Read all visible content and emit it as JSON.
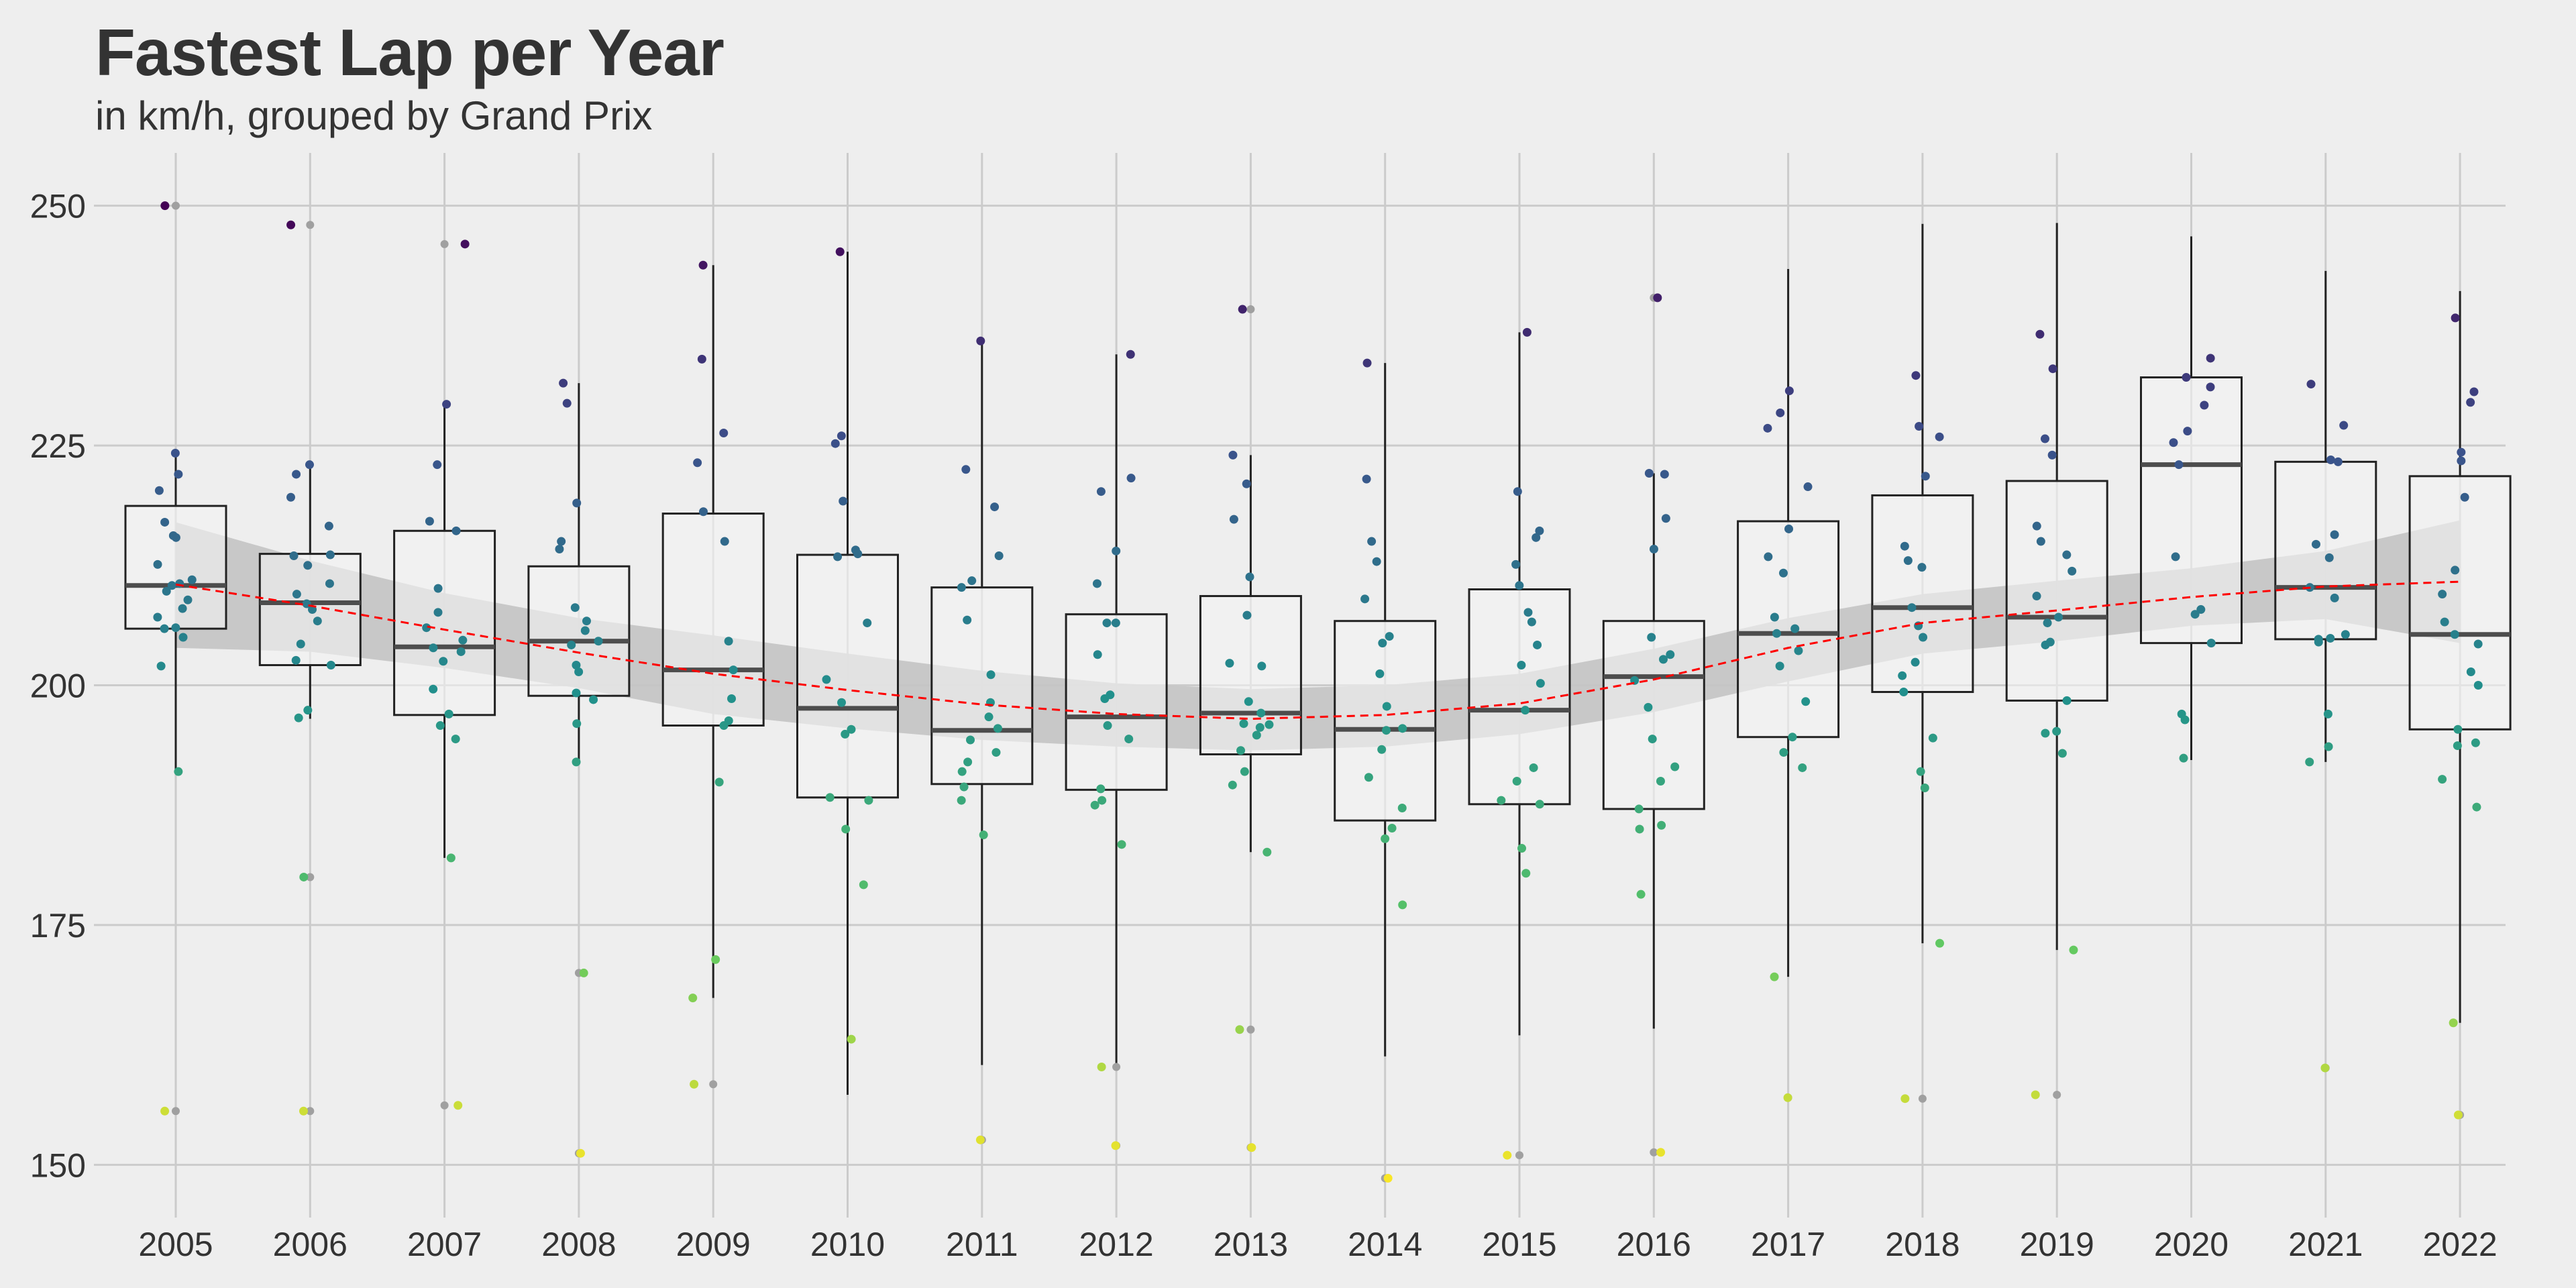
{
  "chart_data": {
    "type": "box",
    "title": "Fastest Lap per Year",
    "subtitle": "in km/h, grouped by Grand Prix",
    "xlabel": "",
    "ylabel": "",
    "ylim": [
      144.5,
      255.5
    ],
    "yticks": [
      150,
      175,
      200,
      225,
      250
    ],
    "grid": true,
    "legend": "none",
    "categories": [
      "2005",
      "2006",
      "2007",
      "2008",
      "2009",
      "2010",
      "2011",
      "2012",
      "2013",
      "2014",
      "2015",
      "2016",
      "2017",
      "2018",
      "2019",
      "2020",
      "2021",
      "2022"
    ],
    "boxes": [
      {
        "q1": 205.9,
        "median": 210.4,
        "q3": 218.7,
        "wlow": 191.0,
        "whigh": 224.2
      },
      {
        "q1": 202.1,
        "median": 208.6,
        "q3": 213.7,
        "wlow": 196.5,
        "whigh": 223.0
      },
      {
        "q1": 196.9,
        "median": 204.0,
        "q3": 216.1,
        "wlow": 182.0,
        "whigh": 229.3
      },
      {
        "q1": 198.9,
        "median": 204.6,
        "q3": 212.4,
        "wlow": 192.0,
        "whigh": 231.5
      },
      {
        "q1": 195.8,
        "median": 201.6,
        "q3": 217.9,
        "wlow": 167.4,
        "whigh": 243.8
      },
      {
        "q1": 188.3,
        "median": 197.6,
        "q3": 213.6,
        "wlow": 157.3,
        "whigh": 245.2
      },
      {
        "q1": 189.7,
        "median": 195.3,
        "q3": 210.2,
        "wlow": 160.4,
        "whigh": 235.9
      },
      {
        "q1": 189.1,
        "median": 196.7,
        "q3": 207.4,
        "wlow": 160.2,
        "whigh": 234.5
      },
      {
        "q1": 192.8,
        "median": 197.1,
        "q3": 209.3,
        "wlow": 182.6,
        "whigh": 224.0
      },
      {
        "q1": 185.9,
        "median": 195.4,
        "q3": 206.7,
        "wlow": 161.3,
        "whigh": 233.6
      },
      {
        "q1": 187.6,
        "median": 197.4,
        "q3": 210.0,
        "wlow": 163.5,
        "whigh": 236.8
      },
      {
        "q1": 187.1,
        "median": 200.9,
        "q3": 206.7,
        "wlow": 164.2,
        "whigh": 222.1
      },
      {
        "q1": 194.6,
        "median": 205.4,
        "q3": 217.1,
        "wlow": 169.6,
        "whigh": 243.4
      },
      {
        "q1": 199.3,
        "median": 208.1,
        "q3": 219.8,
        "wlow": 173.1,
        "whigh": 248.1
      },
      {
        "q1": 198.4,
        "median": 207.1,
        "q3": 221.3,
        "wlow": 172.4,
        "whigh": 248.2
      },
      {
        "q1": 204.4,
        "median": 223.0,
        "q3": 232.1,
        "wlow": 192.2,
        "whigh": 246.8
      },
      {
        "q1": 204.8,
        "median": 210.2,
        "q3": 223.3,
        "wlow": 192.0,
        "whigh": 243.2
      },
      {
        "q1": 195.4,
        "median": 205.3,
        "q3": 221.8,
        "wlow": 164.8,
        "whigh": 241.1
      }
    ],
    "outliers": [
      [
        250.0,
        155.6
      ],
      [
        248.0,
        180.0,
        155.6
      ],
      [
        246.0,
        156.2
      ],
      [
        170.0,
        151.2
      ],
      [
        158.4
      ],
      [],
      [
        152.6
      ],
      [
        160.2,
        152.0
      ],
      [
        239.2,
        164.1,
        151.8
      ],
      [
        148.6
      ],
      [
        151.0
      ],
      [
        240.4,
        151.3
      ],
      [
        157.0
      ],
      [
        156.9
      ],
      [
        157.3
      ],
      [],
      [
        160.1
      ],
      [
        155.2
      ]
    ],
    "points": [
      [
        224.2,
        222.0,
        220.3,
        217.0,
        215.6,
        215.4,
        212.6,
        211.0,
        210.6,
        210.4,
        209.8,
        208.9,
        208.0,
        207.1,
        206.0,
        205.9,
        205.0,
        202.0,
        191.0
      ],
      [
        223.0,
        222.0,
        219.6,
        216.6,
        213.6,
        213.5,
        212.5,
        210.6,
        209.5,
        208.5,
        207.9,
        206.7,
        204.3,
        202.6,
        202.1,
        197.4,
        196.6
      ],
      [
        229.3,
        223.0,
        217.1,
        216.1,
        210.1,
        207.6,
        206.0,
        204.7,
        203.9,
        203.5,
        202.5,
        199.6,
        197.0,
        195.8,
        194.4,
        182.0
      ],
      [
        231.5,
        229.4,
        219.0,
        215.0,
        214.2,
        208.1,
        206.7,
        205.7,
        204.6,
        204.2,
        202.1,
        201.4,
        199.2,
        198.5,
        196.0,
        192.0
      ],
      [
        243.8,
        234.0,
        226.3,
        223.2,
        218.1,
        215.0,
        204.6,
        201.6,
        198.6,
        196.3,
        195.8,
        189.9,
        171.4,
        167.4
      ],
      [
        245.2,
        226.0,
        225.2,
        219.2,
        214.1,
        213.7,
        213.4,
        206.5,
        200.6,
        198.2,
        195.4,
        194.9,
        188.3,
        188.0,
        185.0,
        179.2,
        163.1
      ],
      [
        235.9,
        222.5,
        218.6,
        213.5,
        210.9,
        210.2,
        206.8,
        201.1,
        198.2,
        196.7,
        195.5,
        194.3,
        193.0,
        192.0,
        191.0,
        189.4,
        188.0,
        184.4
      ],
      [
        234.5,
        221.6,
        220.2,
        214.0,
        210.6,
        206.5,
        206.5,
        203.2,
        199.0,
        198.6,
        195.8,
        194.4,
        189.2,
        188.0,
        187.5,
        183.4
      ],
      [
        224.0,
        221.0,
        217.3,
        211.3,
        207.3,
        202.3,
        202.0,
        198.3,
        197.1,
        196.0,
        195.9,
        195.6,
        194.8,
        193.2,
        191.0,
        189.6,
        182.6
      ],
      [
        233.6,
        221.5,
        215.0,
        212.9,
        209.0,
        205.1,
        204.4,
        201.2,
        197.8,
        195.5,
        195.3,
        193.3,
        190.4,
        187.2,
        185.1,
        184.0,
        177.1
      ],
      [
        236.8,
        220.2,
        216.1,
        215.4,
        212.6,
        210.4,
        207.6,
        206.6,
        204.2,
        202.1,
        200.2,
        197.4,
        191.4,
        190.0,
        188.0,
        187.6,
        183.0,
        180.4
      ],
      [
        222.1,
        222.0,
        217.4,
        214.2,
        205.0,
        203.2,
        202.7,
        200.5,
        197.7,
        194.4,
        191.5,
        190.0,
        187.1,
        185.4,
        185.0,
        178.2
      ],
      [
        230.7,
        228.4,
        226.8,
        220.7,
        216.3,
        213.4,
        211.7,
        207.1,
        205.9,
        205.4,
        203.6,
        202.0,
        198.3,
        194.6,
        193.0,
        191.4,
        169.6
      ],
      [
        232.3,
        227.0,
        225.9,
        221.8,
        214.5,
        213.0,
        212.3,
        208.1,
        206.2,
        205.0,
        202.4,
        201.0,
        199.3,
        194.5,
        191.0,
        189.3,
        173.1
      ],
      [
        236.6,
        233.0,
        225.7,
        224.0,
        216.6,
        215.0,
        213.6,
        211.9,
        209.3,
        207.1,
        206.5,
        204.5,
        204.2,
        198.4,
        195.2,
        195.0,
        192.9,
        172.4
      ],
      [
        234.1,
        232.1,
        231.1,
        229.2,
        226.5,
        225.3,
        223.0,
        213.4,
        207.9,
        207.4,
        204.4,
        197.0,
        196.4,
        192.4
      ],
      [
        231.4,
        227.1,
        223.5,
        223.3,
        215.7,
        214.7,
        213.3,
        210.2,
        209.1,
        205.3,
        204.9,
        204.8,
        204.5,
        197.0,
        193.6,
        192.0
      ],
      [
        238.3,
        230.6,
        229.5,
        224.3,
        223.4,
        219.6,
        212.0,
        209.5,
        206.6,
        205.3,
        204.3,
        201.4,
        200.0,
        195.4,
        194.0,
        193.7,
        190.2,
        187.3,
        164.8
      ]
    ],
    "trend": {
      "type": "loess",
      "line_color": "#ff0000",
      "band_color": "#c4c4c4",
      "fit": [
        210.5,
        208.3,
        205.8,
        203.4,
        201.2,
        199.5,
        198.0,
        197.0,
        196.5,
        196.9,
        198.1,
        200.6,
        203.9,
        206.5,
        207.8,
        209.2,
        210.3,
        210.8
      ],
      "upper": [
        217.0,
        213.0,
        209.6,
        207.0,
        205.2,
        203.3,
        201.5,
        200.2,
        199.6,
        200.0,
        201.2,
        203.8,
        207.0,
        209.5,
        210.9,
        212.2,
        214.0,
        217.2
      ],
      "lower": [
        203.9,
        203.5,
        201.8,
        199.7,
        197.0,
        195.5,
        194.3,
        193.6,
        193.2,
        193.6,
        194.9,
        197.2,
        200.4,
        203.3,
        204.6,
        206.2,
        206.9,
        204.4
      ]
    },
    "colors": {
      "background": "#eeeeee",
      "grid": "#cbcbcb",
      "box_fill": "#f4f4f4",
      "box_stroke": "#222222",
      "median": "#4d4d4d",
      "outlier": "#a0a0a0",
      "scale": [
        "#440154",
        "#3b528b",
        "#21908c",
        "#5dc863",
        "#fde725"
      ]
    }
  }
}
